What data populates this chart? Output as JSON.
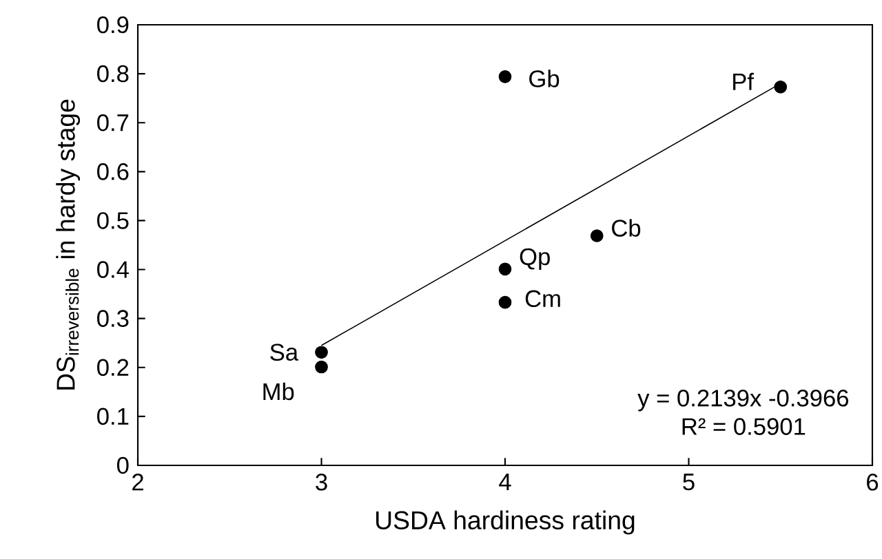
{
  "chart_data": {
    "type": "scatter",
    "xlabel": "USDA hardiness rating",
    "ylabel": "\\mathrm{DS_{irreversible}\\ in\\ hardy\\ stage}",
    "series": [
      {
        "color": "#000000",
        "marker": "circle",
        "x": [
          4,
          5.5,
          4.5,
          4,
          4,
          3,
          3
        ],
        "values": [
          0.794,
          0.773,
          0.469,
          0.401,
          0.333,
          0.231,
          0.201
        ]
      },
      {
        "type": "line",
        "color": "#000000",
        "line_style": "solid",
        "marker": "none",
        "x": [
          3,
          5.5
        ],
        "values": [
          0.245,
          0.78
        ]
      }
    ],
    "annotations": [
      {
        "text": "Gb",
        "x": 4,
        "y": 0.794
      },
      {
        "text": "Pf",
        "x": 5.5,
        "y": 0.773
      },
      {
        "text": "Cb",
        "x": 4.5,
        "y": 0.469
      },
      {
        "text": "Qp",
        "x": 4,
        "y": 0.401
      },
      {
        "text": "Cm",
        "x": 4,
        "y": 0.333
      },
      {
        "text": "Sa",
        "x": 3,
        "y": 0.231
      },
      {
        "text": "Mb",
        "x": 3,
        "y": 0.201
      },
      "y = 0.2139x -0.3966",
      "R² = 0.5901"
    ],
    "xlim": [
      2,
      6
    ],
    "ylim": [
      0,
      0.9
    ],
    "xticks": [
      2,
      3,
      4,
      5,
      6
    ],
    "yticks": [
      0,
      0.1,
      0.2,
      0.3,
      0.4,
      0.5,
      0.6,
      0.7,
      0.8,
      0.9
    ],
    "grid": false
  }
}
